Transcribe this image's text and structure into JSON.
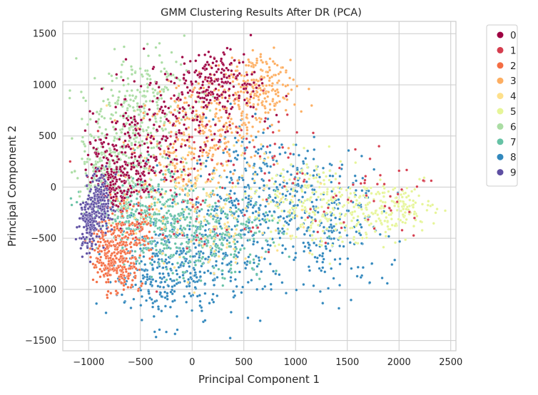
{
  "chart_data": {
    "type": "scatter",
    "title": "GMM Clustering Results After DR (PCA)",
    "xlabel": "Principal Component 1",
    "ylabel": "Principal Component 2",
    "xlim": [
      -1250,
      2550
    ],
    "ylim": [
      -1600,
      1620
    ],
    "xticks": [
      -1000,
      -500,
      0,
      500,
      1000,
      1500,
      2000,
      2500
    ],
    "yticks": [
      -1500,
      -1000,
      -500,
      0,
      500,
      1000,
      1500
    ],
    "grid": true,
    "legend_position": "outside-right-top",
    "series": [
      {
        "name": "0",
        "color": "#9e0142",
        "count": 620,
        "points": [
          [
            -550,
            350,
            230,
            280
          ],
          [
            -100,
            700,
            260,
            260
          ],
          [
            250,
            1050,
            200,
            160
          ],
          [
            -750,
            100,
            120,
            180
          ]
        ]
      },
      {
        "name": "1",
        "color": "#d53e4f",
        "count": 160,
        "points": [
          [
            300,
            600,
            500,
            300
          ],
          [
            800,
            -100,
            500,
            300
          ],
          [
            -200,
            -300,
            400,
            300
          ],
          [
            1800,
            0,
            300,
            250
          ]
        ]
      },
      {
        "name": "2",
        "color": "#f46d43",
        "count": 380,
        "points": [
          [
            -820,
            -620,
            90,
            130
          ],
          [
            -600,
            -450,
            130,
            180
          ],
          [
            -700,
            -800,
            90,
            120
          ]
        ]
      },
      {
        "name": "3",
        "color": "#fdae61",
        "count": 520,
        "points": [
          [
            150,
            650,
            280,
            260
          ],
          [
            450,
            800,
            250,
            220
          ],
          [
            -100,
            300,
            250,
            220
          ],
          [
            700,
            1000,
            150,
            150
          ]
        ]
      },
      {
        "name": "4",
        "color": "#fee08b",
        "count": 200,
        "points": [
          [
            300,
            -300,
            400,
            300
          ],
          [
            0,
            0,
            350,
            250
          ]
        ]
      },
      {
        "name": "5",
        "color": "#e6f598",
        "count": 400,
        "points": [
          [
            1450,
            -250,
            350,
            170
          ],
          [
            1950,
            -200,
            200,
            120
          ],
          [
            1100,
            -100,
            250,
            200
          ]
        ]
      },
      {
        "name": "6",
        "color": "#abdda4",
        "count": 560,
        "points": [
          [
            -700,
            500,
            200,
            330
          ],
          [
            -400,
            800,
            220,
            250
          ],
          [
            -850,
            100,
            130,
            220
          ]
        ]
      },
      {
        "name": "7",
        "color": "#66c2a5",
        "count": 620,
        "points": [
          [
            -200,
            -350,
            320,
            200
          ],
          [
            250,
            -500,
            300,
            220
          ],
          [
            -500,
            -200,
            200,
            200
          ]
        ]
      },
      {
        "name": "8",
        "color": "#3288bd",
        "count": 1050,
        "points": [
          [
            0,
            -700,
            350,
            300
          ],
          [
            350,
            -300,
            380,
            350
          ],
          [
            800,
            0,
            350,
            300
          ],
          [
            1300,
            -400,
            300,
            300
          ],
          [
            -300,
            -850,
            250,
            220
          ]
        ]
      },
      {
        "name": "9",
        "color": "#5e4fa2",
        "count": 300,
        "points": [
          [
            -1000,
            -350,
            45,
            140
          ],
          [
            -880,
            -150,
            60,
            130
          ]
        ]
      }
    ]
  }
}
